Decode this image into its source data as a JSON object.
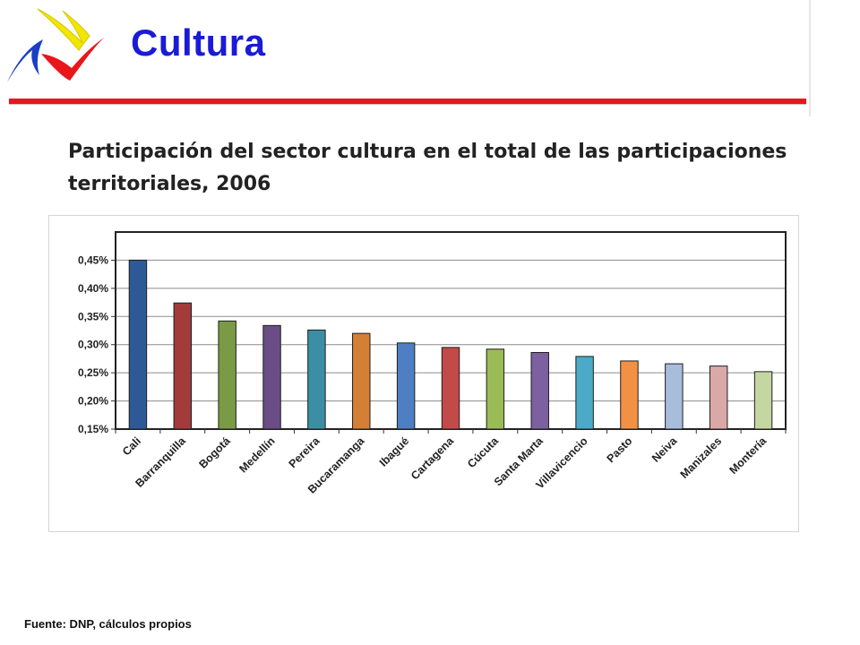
{
  "header": {
    "title": "Cultura",
    "logo_colors": {
      "blue": "#1a3fc4",
      "red": "#e8171b",
      "yellow": "#f2e600"
    },
    "rule_color": "#e8171b"
  },
  "source": "Fuente: DNP, cálculos propios",
  "chart_data": {
    "type": "bar",
    "title": "Participación  del sector cultura en el total de las participaciones territoriales, 2006",
    "xlabel": "",
    "ylabel": "",
    "ylim": [
      0.15,
      0.5
    ],
    "yticks": [
      0.15,
      0.2,
      0.25,
      0.3,
      0.35,
      0.4,
      0.45
    ],
    "ytick_labels": [
      "0,15%",
      "0,20%",
      "0,25%",
      "0,30%",
      "0,35%",
      "0,40%",
      "0,45%"
    ],
    "grid": true,
    "legend": "none",
    "categories": [
      "Cali",
      "Barranquilla",
      "Bogotá",
      "Medellín",
      "Pereira",
      "Bucaramanga",
      "Ibagué",
      "Cartagena",
      "Cúcuta",
      "Santa Marta",
      "Villavicencio",
      "Pasto",
      "Neiva",
      "Manizales",
      "Montería"
    ],
    "values": [
      0.45,
      0.374,
      0.342,
      0.334,
      0.326,
      0.32,
      0.303,
      0.295,
      0.292,
      0.286,
      0.279,
      0.271,
      0.266,
      0.262,
      0.252
    ],
    "colors": [
      "#2d5a96",
      "#a23b3a",
      "#7b9a46",
      "#6a4d84",
      "#3b8ea4",
      "#d47f36",
      "#4e7fc2",
      "#c24a48",
      "#9bbb57",
      "#7c60a0",
      "#4baac8",
      "#f29144",
      "#a8bcdc",
      "#dba8a8",
      "#c4d6a2"
    ]
  }
}
